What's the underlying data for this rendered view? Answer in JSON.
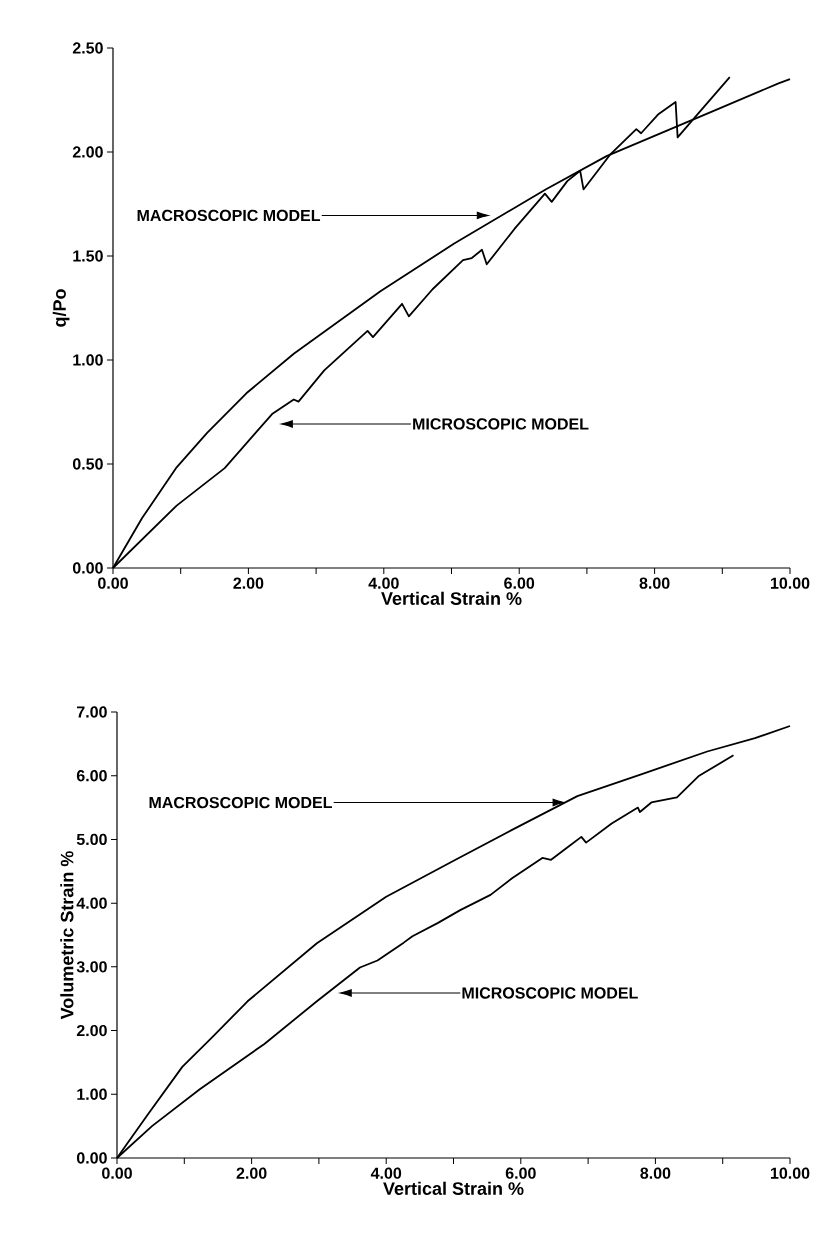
{
  "chart_data": [
    {
      "type": "line",
      "xlabel": "Vertical Strain %",
      "ylabel": "q/Po",
      "xlim": [
        0,
        10
      ],
      "ylim": [
        0,
        2.5
      ],
      "xticks": [
        {
          "value": 0,
          "label": "0.00"
        },
        {
          "value": 1,
          "label": null
        },
        {
          "value": 2,
          "label": "2.00"
        },
        {
          "value": 3,
          "label": null
        },
        {
          "value": 4,
          "label": "4.00"
        },
        {
          "value": 5,
          "label": null
        },
        {
          "value": 6,
          "label": "6.00"
        },
        {
          "value": 7,
          "label": null
        },
        {
          "value": 8,
          "label": "8.00"
        },
        {
          "value": 9,
          "label": null
        },
        {
          "value": 10,
          "label": "10.00"
        }
      ],
      "yticks": [
        {
          "value": 0,
          "label": "0.00"
        },
        {
          "value": 0.5,
          "label": "0.50"
        },
        {
          "value": 1,
          "label": "1.00"
        },
        {
          "value": 1.5,
          "label": "1.50"
        },
        {
          "value": 2,
          "label": "2.00"
        },
        {
          "value": 2.5,
          "label": "2.50"
        }
      ],
      "grid": false,
      "marker": "none",
      "line_style": "solid",
      "series": [
        {
          "color": "#000000",
          "x": [
            0,
            0.43,
            0.93,
            1.39,
            1.97,
            2.67,
            3.95,
            5.04,
            6.39,
            7.29,
            8.89,
            9.83,
            10
          ],
          "values": [
            0,
            0.24,
            0.48,
            0.65,
            0.84,
            1.03,
            1.33,
            1.56,
            1.82,
            1.98,
            2.2,
            2.33,
            2.35
          ]
        },
        {
          "color": "#000000",
          "x": [
            0,
            0.94,
            1.65,
            2.35,
            2.67,
            2.74,
            3.12,
            3.76,
            3.84,
            4.27,
            4.37,
            4.72,
            5.17,
            5.3,
            5.45,
            5.52,
            5.93,
            6.38,
            6.48,
            6.71,
            6.9,
            6.95,
            7.35,
            7.73,
            7.8,
            8.05,
            8.31,
            8.34,
            8.63,
            9.11
          ],
          "values": [
            0,
            0.3,
            0.48,
            0.74,
            0.81,
            0.8,
            0.95,
            1.14,
            1.11,
            1.27,
            1.21,
            1.34,
            1.48,
            1.49,
            1.53,
            1.46,
            1.63,
            1.8,
            1.76,
            1.86,
            1.91,
            1.82,
            1.99,
            2.11,
            2.09,
            2.18,
            2.24,
            2.07,
            2.18,
            2.36
          ]
        }
      ],
      "annotations": [
        "MACROSCOPIC MODEL",
        "MICROSCOPIC MODEL"
      ]
    },
    {
      "type": "line",
      "xlabel": "Vertical Strain %",
      "ylabel": "Volumetric Strain %",
      "xlim": [
        0,
        10
      ],
      "ylim": [
        0,
        7
      ],
      "xticks": [
        {
          "value": 0,
          "label": "0.00"
        },
        {
          "value": 1,
          "label": null
        },
        {
          "value": 2,
          "label": "2.00"
        },
        {
          "value": 3,
          "label": null
        },
        {
          "value": 4,
          "label": "4.00"
        },
        {
          "value": 5,
          "label": null
        },
        {
          "value": 6,
          "label": "6.00"
        },
        {
          "value": 7,
          "label": null
        },
        {
          "value": 8,
          "label": "8.00"
        },
        {
          "value": 9,
          "label": null
        },
        {
          "value": 10,
          "label": "10.00"
        }
      ],
      "yticks": [
        {
          "value": 0,
          "label": "0.00"
        },
        {
          "value": 1,
          "label": "1.00"
        },
        {
          "value": 2,
          "label": "2.00"
        },
        {
          "value": 3,
          "label": "3.00"
        },
        {
          "value": 4,
          "label": "4.00"
        },
        {
          "value": 5,
          "label": "5.00"
        },
        {
          "value": 6,
          "label": "6.00"
        },
        {
          "value": 7,
          "label": "7.00"
        }
      ],
      "grid": false,
      "marker": "none",
      "line_style": "solid",
      "series": [
        {
          "color": "#000000",
          "x": [
            0,
            0.45,
            0.97,
            1.42,
            1.94,
            2.97,
            4.0,
            5.03,
            5.87,
            6.84,
            7.81,
            8.77,
            9.48,
            10
          ],
          "values": [
            0,
            0.67,
            1.43,
            1.9,
            2.46,
            3.37,
            4.1,
            4.68,
            5.15,
            5.68,
            6.03,
            6.38,
            6.59,
            6.78
          ]
        },
        {
          "color": "#000000",
          "x": [
            0,
            0.52,
            1.23,
            2.19,
            2.97,
            3.61,
            3.87,
            4.26,
            4.39,
            4.77,
            5.1,
            5.55,
            5.87,
            6.32,
            6.45,
            6.71,
            6.9,
            6.97,
            7.35,
            7.74,
            7.77,
            7.94,
            8.32,
            8.65,
            9.16
          ],
          "values": [
            0,
            0.5,
            1.08,
            1.79,
            2.46,
            2.99,
            3.1,
            3.38,
            3.48,
            3.69,
            3.89,
            4.13,
            4.39,
            4.71,
            4.68,
            4.89,
            5.04,
            4.95,
            5.25,
            5.5,
            5.43,
            5.58,
            5.66,
            6.0,
            6.32
          ]
        }
      ],
      "annotations": [
        "MACROSCOPIC MODEL",
        "MICROSCOPIC MODEL"
      ]
    }
  ]
}
